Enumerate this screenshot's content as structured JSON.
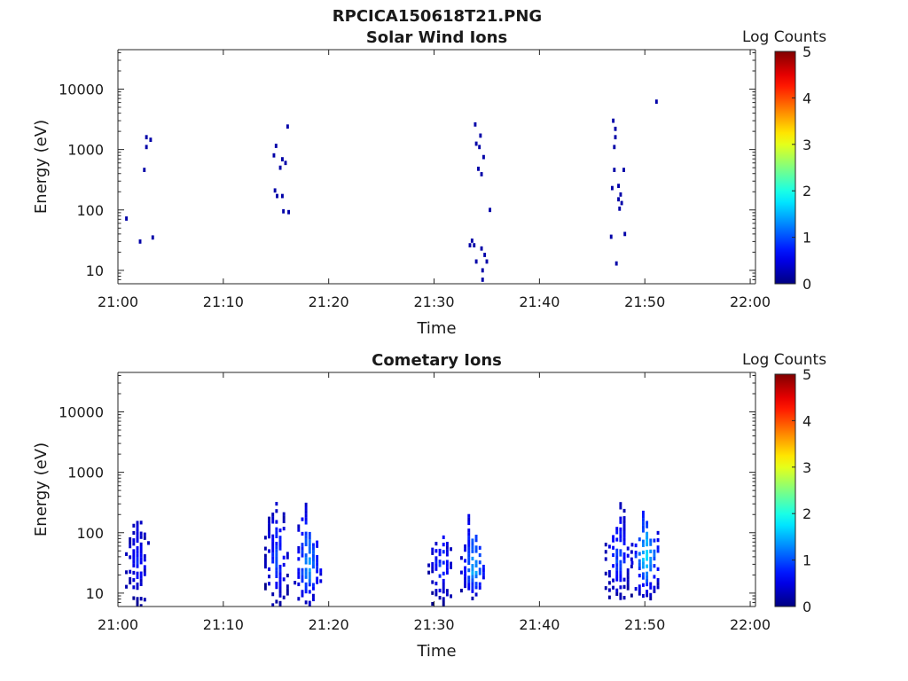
{
  "figure": {
    "title": "RPCICA150618T21.PNG"
  },
  "chart_data": [
    {
      "type": "heatmap",
      "title": "Solar Wind Ions",
      "xlabel": "Time",
      "ylabel": "Energy (eV)",
      "x_ticks": [
        "21:00",
        "21:10",
        "21:20",
        "21:30",
        "21:40",
        "21:50",
        "22:00"
      ],
      "xlim_minutes": [
        0,
        60.5
      ],
      "y_ticks": [
        "10",
        "100",
        "1000",
        "10000"
      ],
      "y_tick_values": [
        10,
        100,
        1000,
        10000
      ],
      "ylim": [
        6,
        45000
      ],
      "y_scale": "log",
      "colorbar": {
        "title": "Log Counts",
        "ticks": [
          "0",
          "1",
          "2",
          "3",
          "4",
          "5"
        ],
        "range": [
          0,
          5
        ],
        "colormap": "jet"
      },
      "points": [
        {
          "t": 0.8,
          "e": 72,
          "c": 0.2
        },
        {
          "t": 2.1,
          "e": 30,
          "c": 0.2
        },
        {
          "t": 2.5,
          "e": 460,
          "c": 0.2
        },
        {
          "t": 2.7,
          "e": 1100,
          "c": 0.2
        },
        {
          "t": 2.7,
          "e": 1600,
          "c": 0.2
        },
        {
          "t": 3.1,
          "e": 1450,
          "c": 0.2
        },
        {
          "t": 3.3,
          "e": 35,
          "c": 0.2
        },
        {
          "t": 14.8,
          "e": 800,
          "c": 0.2
        },
        {
          "t": 14.9,
          "e": 210,
          "c": 0.2
        },
        {
          "t": 15.0,
          "e": 1150,
          "c": 0.2
        },
        {
          "t": 15.1,
          "e": 170,
          "c": 0.2
        },
        {
          "t": 15.4,
          "e": 500,
          "c": 0.2
        },
        {
          "t": 15.6,
          "e": 690,
          "c": 0.2
        },
        {
          "t": 15.6,
          "e": 170,
          "c": 0.2
        },
        {
          "t": 15.7,
          "e": 95,
          "c": 0.2
        },
        {
          "t": 15.9,
          "e": 600,
          "c": 0.2
        },
        {
          "t": 16.1,
          "e": 2400,
          "c": 0.2
        },
        {
          "t": 16.2,
          "e": 92,
          "c": 0.2
        },
        {
          "t": 33.4,
          "e": 26,
          "c": 0.2
        },
        {
          "t": 33.6,
          "e": 31,
          "c": 0.2
        },
        {
          "t": 33.8,
          "e": 26,
          "c": 0.2
        },
        {
          "t": 33.9,
          "e": 2600,
          "c": 0.2
        },
        {
          "t": 34.0,
          "e": 1250,
          "c": 0.2
        },
        {
          "t": 34.0,
          "e": 14,
          "c": 0.2
        },
        {
          "t": 34.2,
          "e": 480,
          "c": 0.2
        },
        {
          "t": 34.3,
          "e": 1100,
          "c": 0.2
        },
        {
          "t": 34.4,
          "e": 1700,
          "c": 0.2
        },
        {
          "t": 34.5,
          "e": 390,
          "c": 0.2
        },
        {
          "t": 34.5,
          "e": 23,
          "c": 0.2
        },
        {
          "t": 34.6,
          "e": 10,
          "c": 0.2
        },
        {
          "t": 34.6,
          "e": 7,
          "c": 0.2
        },
        {
          "t": 34.7,
          "e": 750,
          "c": 0.2
        },
        {
          "t": 34.8,
          "e": 18,
          "c": 0.2
        },
        {
          "t": 35.0,
          "e": 14,
          "c": 0.2
        },
        {
          "t": 35.3,
          "e": 100,
          "c": 0.2
        },
        {
          "t": 46.8,
          "e": 36,
          "c": 0.2
        },
        {
          "t": 46.9,
          "e": 230,
          "c": 0.2
        },
        {
          "t": 47.0,
          "e": 3000,
          "c": 0.2
        },
        {
          "t": 47.1,
          "e": 1100,
          "c": 0.2
        },
        {
          "t": 47.1,
          "e": 460,
          "c": 0.2
        },
        {
          "t": 47.2,
          "e": 1600,
          "c": 0.2
        },
        {
          "t": 47.2,
          "e": 2200,
          "c": 0.2
        },
        {
          "t": 47.3,
          "e": 13,
          "c": 0.2
        },
        {
          "t": 47.5,
          "e": 250,
          "c": 0.2
        },
        {
          "t": 47.5,
          "e": 150,
          "c": 0.2
        },
        {
          "t": 47.6,
          "e": 105,
          "c": 0.2
        },
        {
          "t": 47.7,
          "e": 180,
          "c": 0.2
        },
        {
          "t": 47.8,
          "e": 130,
          "c": 0.2
        },
        {
          "t": 48.0,
          "e": 460,
          "c": 0.2
        },
        {
          "t": 48.1,
          "e": 40,
          "c": 0.2
        },
        {
          "t": 51.1,
          "e": 6200,
          "c": 0.2
        }
      ]
    },
    {
      "type": "heatmap",
      "title": "Cometary Ions",
      "xlabel": "Time",
      "ylabel": "Energy (eV)",
      "x_ticks": [
        "21:00",
        "21:10",
        "21:20",
        "21:30",
        "21:40",
        "21:50",
        "22:00"
      ],
      "xlim_minutes": [
        0,
        60.5
      ],
      "y_ticks": [
        "10",
        "100",
        "1000",
        "10000"
      ],
      "y_tick_values": [
        10,
        100,
        1000,
        10000
      ],
      "ylim": [
        6,
        45000
      ],
      "y_scale": "log",
      "colorbar": {
        "title": "Log Counts",
        "ticks": [
          "0",
          "1",
          "2",
          "3",
          "4",
          "5"
        ],
        "range": [
          0,
          5
        ],
        "colormap": "jet"
      },
      "bursts": [
        {
          "t0": 0.8,
          "t1": 3.0,
          "e_center": 32,
          "e_low": 6,
          "e_high": 380,
          "peak": 0.85
        },
        {
          "t0": 14.0,
          "t1": 16.3,
          "e_center": 34,
          "e_low": 6,
          "e_high": 560,
          "peak": 1.05
        },
        {
          "t0": 16.8,
          "t1": 19.4,
          "e_center": 26,
          "e_low": 6,
          "e_high": 560,
          "peak": 1.55
        },
        {
          "t0": 29.5,
          "t1": 31.9,
          "e_center": 32,
          "e_low": 6,
          "e_high": 190,
          "peak": 1.0
        },
        {
          "t0": 32.6,
          "t1": 35.0,
          "e_center": 22,
          "e_low": 8,
          "e_high": 520,
          "peak": 1.6
        },
        {
          "t0": 46.3,
          "t1": 48.8,
          "e_center": 34,
          "e_low": 8,
          "e_high": 540,
          "peak": 1.1
        },
        {
          "t0": 48.8,
          "t1": 51.5,
          "e_center": 40,
          "e_low": 8,
          "e_high": 420,
          "peak": 1.9
        }
      ]
    }
  ]
}
